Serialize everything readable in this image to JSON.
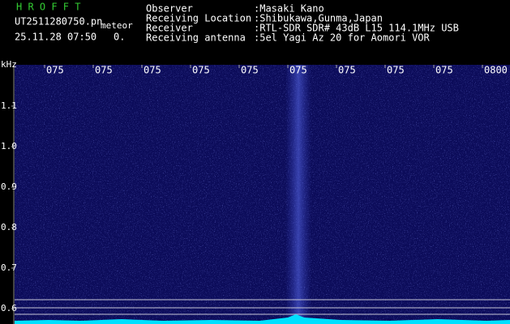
{
  "header": {
    "title": "H R O F F T",
    "filename": "UT2511280750.pn",
    "tag": "meteor",
    "datetime": "25.11.28 07:50",
    "count": "0."
  },
  "info": {
    "rows": [
      {
        "label": "Observer",
        "value": ":Masaki Kano"
      },
      {
        "label": "Receiving Location",
        "value": ":Shibukawa,Gunma,Japan"
      },
      {
        "label": "Receiver",
        "value": ":RTL-SDR SDR# 43dB L15 114.1MHz USB"
      },
      {
        "label": "Receiving antenna",
        "value": ":5el Yagi Az 20 for Aomori VOR"
      }
    ]
  },
  "plot": {
    "time_labels": [
      "075",
      "075",
      "075",
      "075",
      "075",
      "075",
      "075",
      "075",
      "075",
      "0800"
    ],
    "freq_unit": "kHz",
    "freq_labels": [
      "1.1",
      "1.0",
      "0.9",
      "0.8",
      "0.7",
      "0.6"
    ]
  }
}
